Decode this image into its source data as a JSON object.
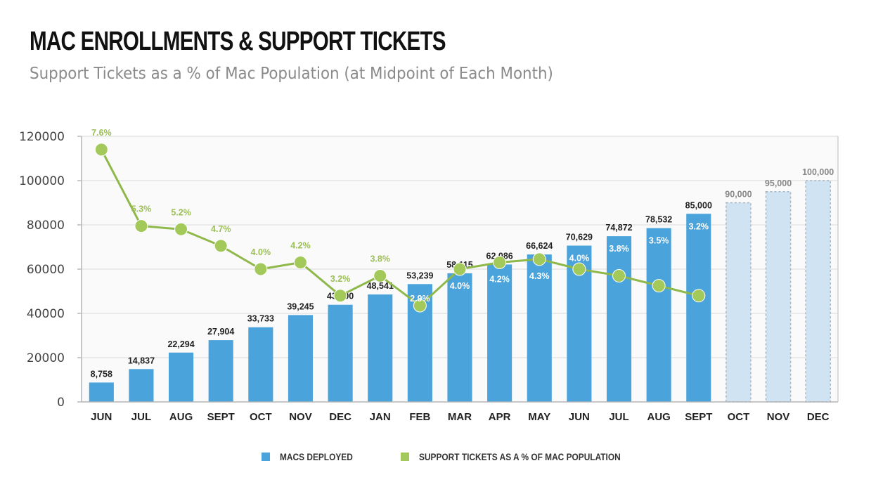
{
  "header": {
    "title": "MAC ENROLLMENTS & SUPPORT TICKETS",
    "subtitle": "Support Tickets as a % of Mac Population (at Midpoint of Each Month)"
  },
  "colors": {
    "bar": "#4aa3da",
    "forecast_bar": "#cfe3f3",
    "forecast_border": "#a9b6c2",
    "line": "#8fb84a",
    "marker": "#a3c95a",
    "grid": "#e4e4e4",
    "plot_bg": "#fafafa"
  },
  "chart_data": {
    "type": "bar+line",
    "title": "MAC ENROLLMENTS & SUPPORT TICKETS",
    "subtitle": "Support Tickets as a % of Mac Population (at Midpoint of Each Month)",
    "xlabel": "",
    "ylabel": "",
    "ylim": [
      0,
      120000
    ],
    "yticks": [
      0,
      20000,
      40000,
      60000,
      80000,
      100000,
      120000
    ],
    "ytick_labels": [
      "0",
      "20000",
      "40000",
      "60000",
      "80000",
      "100000",
      "120000"
    ],
    "grid": true,
    "legend_position": "bottom",
    "categories": [
      "JUN",
      "JUL",
      "AUG",
      "SEPT",
      "OCT",
      "NOV",
      "DEC",
      "JAN",
      "FEB",
      "MAR",
      "APR",
      "MAY",
      "JUN",
      "JUL",
      "AUG",
      "SEPT",
      "OCT",
      "NOV",
      "DEC"
    ],
    "series": [
      {
        "name": "MACS DEPLOYED",
        "type": "bar",
        "values": [
          8758,
          14837,
          22294,
          27904,
          33733,
          39245,
          43900,
          48541,
          53239,
          58115,
          62086,
          66624,
          70629,
          74872,
          78532,
          85000,
          90000,
          95000,
          100000
        ],
        "labels": [
          "8,758",
          "14,837",
          "22,294",
          "27,904",
          "33,733",
          "39,245",
          "43,900",
          "48,541",
          "53,239",
          "58,115",
          "62,086",
          "66,624",
          "70,629",
          "74,872",
          "78,532",
          "85,000",
          "90,000",
          "95,000",
          "100,000"
        ],
        "forecast_from_index": 16
      },
      {
        "name": "SUPPORT TICKETS AS A % OF MAC POPULATION",
        "type": "line",
        "unit": "%",
        "values": [
          7.6,
          5.3,
          5.2,
          4.7,
          4.0,
          4.2,
          3.2,
          3.8,
          2.9,
          4.0,
          4.2,
          4.3,
          4.0,
          3.8,
          3.5,
          3.2
        ],
        "labels": [
          "7.6%",
          "5.3%",
          "5.2%",
          "4.7%",
          "4.0%",
          "4.2%",
          "3.2%",
          "3.8%",
          "2.9%",
          "4.0%",
          "4.2%",
          "4.3%",
          "4.0%",
          "3.8%",
          "3.5%",
          "3.2%"
        ]
      }
    ]
  },
  "legend": {
    "items": [
      {
        "label": "MACS DEPLOYED"
      },
      {
        "label": "SUPPORT TICKETS AS A % OF MAC POPULATION"
      }
    ]
  }
}
